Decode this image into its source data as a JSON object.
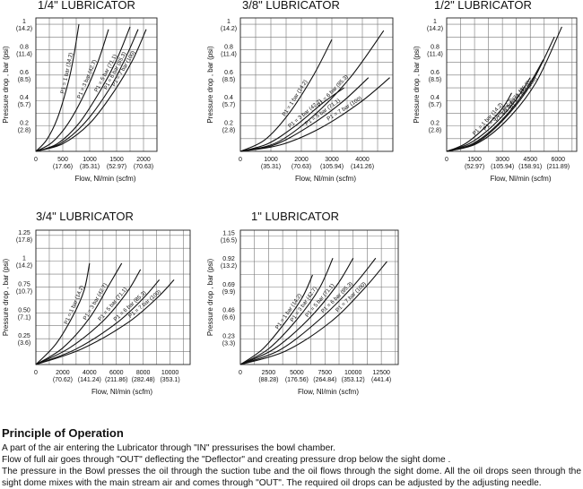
{
  "chart_data": [
    {
      "type": "line",
      "title": "1/4\" LUBRICATOR",
      "xlabel": "Flow, Nl/min (scfm)",
      "ylabel": "Pressure drop , bar (psi)",
      "xlim": [
        0,
        2250
      ],
      "ylim": [
        0,
        1.05
      ],
      "x_ticks": [
        {
          "v": 0,
          "l1": "0",
          "l2": ""
        },
        {
          "v": 500,
          "l1": "500",
          "l2": "(17.66)"
        },
        {
          "v": 1000,
          "l1": "1000",
          "l2": "(35.31)"
        },
        {
          "v": 1500,
          "l1": "1500",
          "l2": "(52.97)"
        },
        {
          "v": 2000,
          "l1": "2000",
          "l2": "(70.63)"
        }
      ],
      "y_ticks": [
        {
          "v": 0.2,
          "l1": "0.2",
          "l2": "(2.8)"
        },
        {
          "v": 0.4,
          "l1": "0.4",
          "l2": "(5.7)"
        },
        {
          "v": 0.6,
          "l1": "0.6",
          "l2": "(8.5)"
        },
        {
          "v": 0.8,
          "l1": "0.8",
          "l2": "(11.4)"
        },
        {
          "v": 1,
          "l1": "1",
          "l2": "(14.2)"
        }
      ],
      "series": [
        {
          "name": "P1 = 1 bar (14.2)",
          "x": [
            0,
            200,
            400,
            600,
            700,
            800
          ],
          "y": [
            0,
            0.09,
            0.26,
            0.54,
            0.74,
            1.0
          ]
        },
        {
          "name": "P1 = 3 bar (42.7)",
          "x": [
            0,
            300,
            600,
            900,
            1150,
            1350
          ],
          "y": [
            0,
            0.07,
            0.22,
            0.45,
            0.7,
            0.96
          ]
        },
        {
          "name": "P1 = 5 bar (71.1)",
          "x": [
            0,
            400,
            800,
            1200,
            1500,
            1750
          ],
          "y": [
            0,
            0.06,
            0.22,
            0.48,
            0.72,
            0.98
          ]
        },
        {
          "name": "P1 = 6 bar (85.3)",
          "x": [
            0,
            450,
            900,
            1350,
            1650,
            1900
          ],
          "y": [
            0,
            0.06,
            0.22,
            0.48,
            0.72,
            0.96
          ]
        },
        {
          "name": "P1 = 7 bar (100)",
          "x": [
            0,
            500,
            1000,
            1450,
            1800,
            2050
          ],
          "y": [
            0,
            0.06,
            0.22,
            0.47,
            0.72,
            0.96
          ]
        }
      ]
    },
    {
      "type": "line",
      "title": "3/8\" LUBRICATOR",
      "xlabel": "Flow, Nl/min (scfm)",
      "ylabel": "Pressure drop , bar (psi)",
      "xlim": [
        0,
        5000
      ],
      "ylim": [
        0,
        1.05
      ],
      "x_ticks": [
        {
          "v": 0,
          "l1": "0",
          "l2": ""
        },
        {
          "v": 1000,
          "l1": "1000",
          "l2": "(35.31)"
        },
        {
          "v": 2000,
          "l1": "2000",
          "l2": "(70.63)"
        },
        {
          "v": 3000,
          "l1": "3000",
          "l2": "(105.94)"
        },
        {
          "v": 4000,
          "l1": "4000",
          "l2": "(141.26)"
        }
      ],
      "y_ticks": [
        {
          "v": 0.2,
          "l1": "0.2",
          "l2": "(2.8)"
        },
        {
          "v": 0.4,
          "l1": "0.4",
          "l2": "(5.7)"
        },
        {
          "v": 0.6,
          "l1": "0.6",
          "l2": "(8.5)"
        },
        {
          "v": 0.8,
          "l1": "0.8",
          "l2": "(11.4)"
        },
        {
          "v": 1,
          "l1": "1",
          "l2": "(14.2)"
        }
      ],
      "series": [
        {
          "name": "P1 = 1 bar (14.2)",
          "x": [
            0,
            800,
            1600,
            2400,
            3000
          ],
          "y": [
            0,
            0.09,
            0.3,
            0.6,
            0.88
          ]
        },
        {
          "name": "P1 = 3 bar (42.7)",
          "x": [
            0,
            900,
            1800,
            2700,
            3400
          ],
          "y": [
            0,
            0.06,
            0.2,
            0.38,
            0.5
          ]
        },
        {
          "name": "P1 = 5 bar (71.1)",
          "x": [
            0,
            1100,
            2200,
            3300,
            4200
          ],
          "y": [
            0,
            0.05,
            0.19,
            0.38,
            0.58
          ]
        },
        {
          "name": "P1 = 6 bar (85.3)",
          "x": [
            0,
            1200,
            2400,
            3600,
            4700
          ],
          "y": [
            0,
            0.07,
            0.28,
            0.58,
            0.95
          ]
        },
        {
          "name": "P1 = 7 bar (100)",
          "x": [
            0,
            1300,
            2600,
            3900,
            4900
          ],
          "y": [
            0,
            0.05,
            0.18,
            0.38,
            0.58
          ]
        }
      ]
    },
    {
      "type": "line",
      "title": "1/2\" LUBRICATOR",
      "xlabel": "Flow, Nl/min (scfm)",
      "ylabel": "Pressure drop , bar (psi)",
      "xlim": [
        0,
        7000
      ],
      "ylim": [
        0,
        1.05
      ],
      "x_ticks": [
        {
          "v": 0,
          "l1": "0",
          "l2": ""
        },
        {
          "v": 1500,
          "l1": "1500",
          "l2": "(52.97)"
        },
        {
          "v": 3000,
          "l1": "3000",
          "l2": "(105.94)"
        },
        {
          "v": 4500,
          "l1": "4500",
          "l2": "(158.91)"
        },
        {
          "v": 6000,
          "l1": "6000",
          "l2": "(211.89)"
        }
      ],
      "y_ticks": [
        {
          "v": 0.2,
          "l1": "0.2",
          "l2": "(2.8)"
        },
        {
          "v": 0.4,
          "l1": "0.4",
          "l2": "(5.7)"
        },
        {
          "v": 0.6,
          "l1": "0.6",
          "l2": "(8.5)"
        },
        {
          "v": 0.8,
          "l1": "0.8",
          "l2": "(11.4)"
        },
        {
          "v": 1,
          "l1": "1",
          "l2": "(14.2)"
        }
      ],
      "series": [
        {
          "name": "P1 = 1 bar (14.2)",
          "x": [
            0,
            1000,
            2000,
            3000,
            3500
          ],
          "y": [
            0,
            0.06,
            0.18,
            0.34,
            0.46
          ]
        },
        {
          "name": "P1 = 3 bar (42.7)",
          "x": [
            0,
            1200,
            2400,
            3600,
            4500
          ],
          "y": [
            0,
            0.06,
            0.19,
            0.38,
            0.58
          ]
        },
        {
          "name": "P1 = 5 bar (71.1)",
          "x": [
            0,
            1400,
            2800,
            4200,
            5200
          ],
          "y": [
            0,
            0.06,
            0.22,
            0.47,
            0.72
          ]
        },
        {
          "name": "P1 = 6 bar (85.3)",
          "x": [
            0,
            1500,
            3000,
            4500,
            5800
          ],
          "y": [
            0,
            0.06,
            0.24,
            0.52,
            0.9
          ]
        },
        {
          "name": "P1 = 7 bar (100)",
          "x": [
            0,
            1600,
            3200,
            4800,
            6200
          ],
          "y": [
            0,
            0.06,
            0.24,
            0.54,
            0.98
          ]
        }
      ]
    },
    {
      "type": "line",
      "title": "3/4\" LUBRICATOR",
      "xlabel": "Flow, Nl/min (scfm)",
      "ylabel": "Pressure drop , bar (psi)",
      "xlim": [
        0,
        11500
      ],
      "ylim": [
        0,
        1.3
      ],
      "x_ticks": [
        {
          "v": 0,
          "l1": "0",
          "l2": ""
        },
        {
          "v": 2000,
          "l1": "2000",
          "l2": "(70.62)"
        },
        {
          "v": 4000,
          "l1": "4000",
          "l2": "(141.24)"
        },
        {
          "v": 6000,
          "l1": "6000",
          "l2": "(211.86)"
        },
        {
          "v": 8000,
          "l1": "8000",
          "l2": "(282.48)"
        },
        {
          "v": 10000,
          "l1": "10000",
          "l2": "(353.1)"
        }
      ],
      "y_ticks": [
        {
          "v": 0.25,
          "l1": "0.25",
          "l2": "(3.6)"
        },
        {
          "v": 0.5,
          "l1": "0.50",
          "l2": "(7.1)"
        },
        {
          "v": 0.75,
          "l1": "0.75",
          "l2": "(10.7)"
        },
        {
          "v": 1,
          "l1": "1",
          "l2": "(14.2)"
        },
        {
          "v": 1.25,
          "l1": "1.25",
          "l2": "(17.8)"
        }
      ],
      "series": [
        {
          "name": "P1 = 1 bar (14.2)",
          "x": [
            0,
            1500,
            2800,
            3600,
            4000
          ],
          "y": [
            0,
            0.2,
            0.48,
            0.72,
            0.98
          ]
        },
        {
          "name": "P1 = 3 bar (42.7)",
          "x": [
            0,
            2000,
            4000,
            5500,
            6400
          ],
          "y": [
            0,
            0.16,
            0.45,
            0.78,
            0.98
          ]
        },
        {
          "name": "P1 = 5 bar (71.1)",
          "x": [
            0,
            2500,
            5000,
            6800,
            7800
          ],
          "y": [
            0,
            0.16,
            0.42,
            0.7,
            0.92
          ]
        },
        {
          "name": "P1 = 6 bar (85.3)",
          "x": [
            0,
            3000,
            6000,
            8000,
            9200
          ],
          "y": [
            0,
            0.15,
            0.4,
            0.64,
            0.82
          ]
        },
        {
          "name": "P1 = 7 bar (100)",
          "x": [
            0,
            3400,
            6800,
            9000,
            10300
          ],
          "y": [
            0,
            0.15,
            0.4,
            0.64,
            0.82
          ]
        }
      ]
    },
    {
      "type": "line",
      "title": "1\" LUBRICATOR",
      "xlabel": "Flow, Nl/min (scfm)",
      "ylabel": "Pressure drop , bar (psi)",
      "xlim": [
        0,
        14000
      ],
      "ylim": [
        0,
        1.2
      ],
      "x_ticks": [
        {
          "v": 0,
          "l1": "0",
          "l2": ""
        },
        {
          "v": 2500,
          "l1": "2500",
          "l2": "(88.28)"
        },
        {
          "v": 5000,
          "l1": "5000",
          "l2": "(176.56)"
        },
        {
          "v": 7500,
          "l1": "7500",
          "l2": "(264.84)"
        },
        {
          "v": 10000,
          "l1": "10000",
          "l2": "(353.12)"
        },
        {
          "v": 12500,
          "l1": "12500",
          "l2": "(441.4)"
        }
      ],
      "y_ticks": [
        {
          "v": 0.23,
          "l1": "0.23",
          "l2": "(3.3)"
        },
        {
          "v": 0.46,
          "l1": "0.46",
          "l2": "(6.6)"
        },
        {
          "v": 0.69,
          "l1": "0.69",
          "l2": "(9.9)"
        },
        {
          "v": 0.92,
          "l1": "0.92",
          "l2": "(13.2)"
        },
        {
          "v": 1.15,
          "l1": "1.15",
          "l2": "(16.5)"
        }
      ],
      "series": [
        {
          "name": "P1 = 1 bar (14.2)",
          "x": [
            0,
            2000,
            4000,
            5500,
            6400
          ],
          "y": [
            0,
            0.14,
            0.38,
            0.6,
            0.8
          ]
        },
        {
          "name": "P1 = 3 bar (42.7)",
          "x": [
            0,
            2500,
            5000,
            7000,
            8200
          ],
          "y": [
            0,
            0.14,
            0.4,
            0.68,
            0.95
          ]
        },
        {
          "name": "P1 = 5 bar (71.1)",
          "x": [
            0,
            3000,
            6000,
            8500,
            10000
          ],
          "y": [
            0,
            0.14,
            0.4,
            0.7,
            0.95
          ]
        },
        {
          "name": "P1 = 6 bar (85.3)",
          "x": [
            0,
            3500,
            7000,
            10000,
            12000
          ],
          "y": [
            0,
            0.13,
            0.4,
            0.7,
            0.95
          ]
        },
        {
          "name": "P1 = 7 bar (100)",
          "x": [
            0,
            4000,
            8000,
            11000,
            13000
          ],
          "y": [
            0,
            0.12,
            0.38,
            0.68,
            0.92
          ]
        }
      ]
    }
  ],
  "principle": {
    "title": "Principle of Operation",
    "line1": "A part of the air entering the Lubricator through \"IN\" pressurises the bowl chamber.",
    "line2": "Flow of full air goes through \"OUT\" deflecting the \"Deflector\" and creating pressure drop below the sight dome .",
    "line3": "The pressure in the Bowl presses the oil through the suction tube and the oil flows through the sight dome. All the oil drops seen through the sight dome mixes with the main stream air and comes through \"OUT\". The required oil drops can be adjusted by the adjusting needle."
  }
}
